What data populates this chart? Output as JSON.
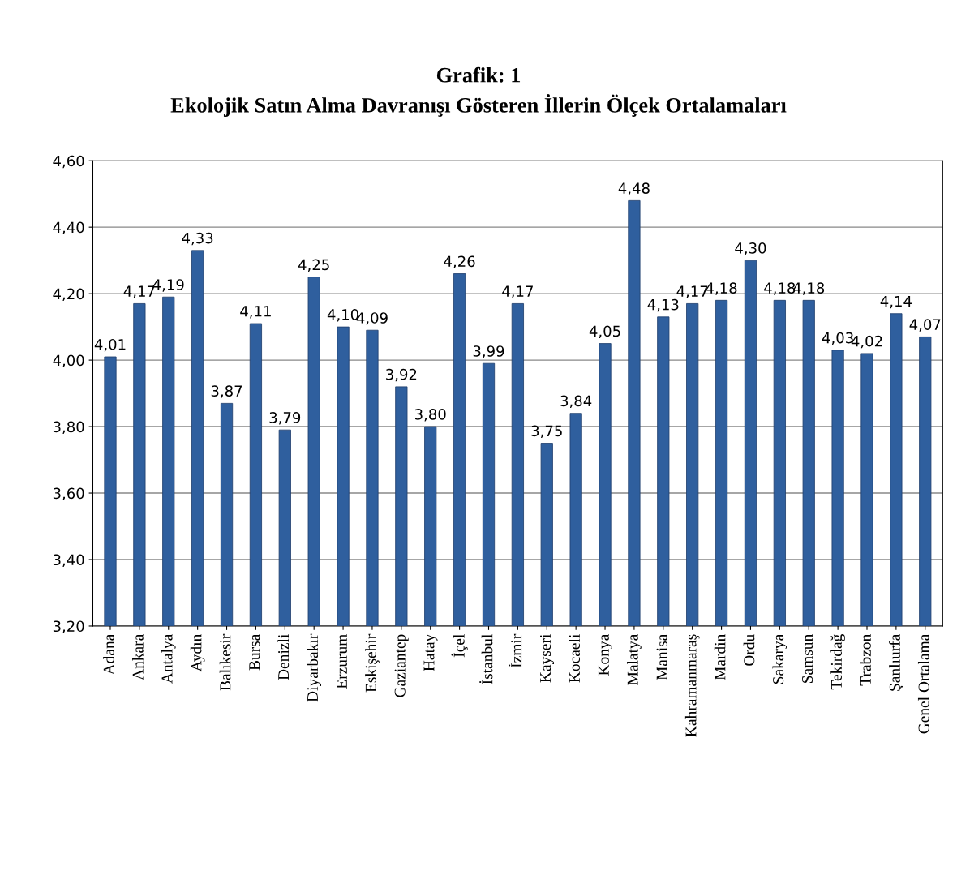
{
  "chart_data": {
    "type": "bar",
    "title": "Grafik: 1",
    "subtitle": "Ekolojik Satın Alma Davranışı Gösteren İllerin Ölçek Ortalamaları",
    "categories": [
      "Adana",
      "Ankara",
      "Antalya",
      "Aydın",
      "Balıkesir",
      "Bursa",
      "Denizli",
      "Diyarbakır",
      "Erzurum",
      "Eskişehir",
      "Gaziantep",
      "Hatay",
      "İçel",
      "İstanbul",
      "İzmir",
      "Kayseri",
      "Kocaeli",
      "Konya",
      "Malatya",
      "Manisa",
      "Kahramanmaraş",
      "Mardin",
      "Ordu",
      "Sakarya",
      "Samsun",
      "Tekirdağ",
      "Trabzon",
      "Şanlıurfa",
      "Genel Ortalama"
    ],
    "values": [
      4.01,
      4.17,
      4.19,
      4.33,
      3.87,
      4.11,
      3.79,
      4.25,
      4.1,
      4.09,
      3.92,
      3.8,
      4.26,
      3.99,
      4.17,
      3.75,
      3.84,
      4.05,
      4.48,
      4.13,
      4.17,
      4.18,
      4.3,
      4.18,
      4.18,
      4.03,
      4.02,
      4.14,
      4.07
    ],
    "value_labels": [
      "4,01",
      "4,17",
      "4,19",
      "4,33",
      "3,87",
      "4,11",
      "3,79",
      "4,25",
      "4,10",
      "4,09",
      "3,92",
      "3,80",
      "4,26",
      "3,99",
      "4,17",
      "3,75",
      "3,84",
      "4,05",
      "4,48",
      "4,13",
      "4,17",
      "4,18",
      "4,30",
      "4,18",
      "4,18",
      "4,03",
      "4,02",
      "4,14",
      "4,07"
    ],
    "color": "#2f5f9e",
    "ylim": [
      3.2,
      4.6
    ],
    "yticks": [
      {
        "value": 3.2,
        "label": "3,20"
      },
      {
        "value": 3.4,
        "label": "3,40"
      },
      {
        "value": 3.6,
        "label": "3,60"
      },
      {
        "value": 3.8,
        "label": "3,80"
      },
      {
        "value": 4.0,
        "label": "4,00"
      },
      {
        "value": 4.2,
        "label": "4,20"
      },
      {
        "value": 4.4,
        "label": "4,40"
      },
      {
        "value": 4.6,
        "label": "4,60"
      }
    ],
    "grid": "y"
  }
}
